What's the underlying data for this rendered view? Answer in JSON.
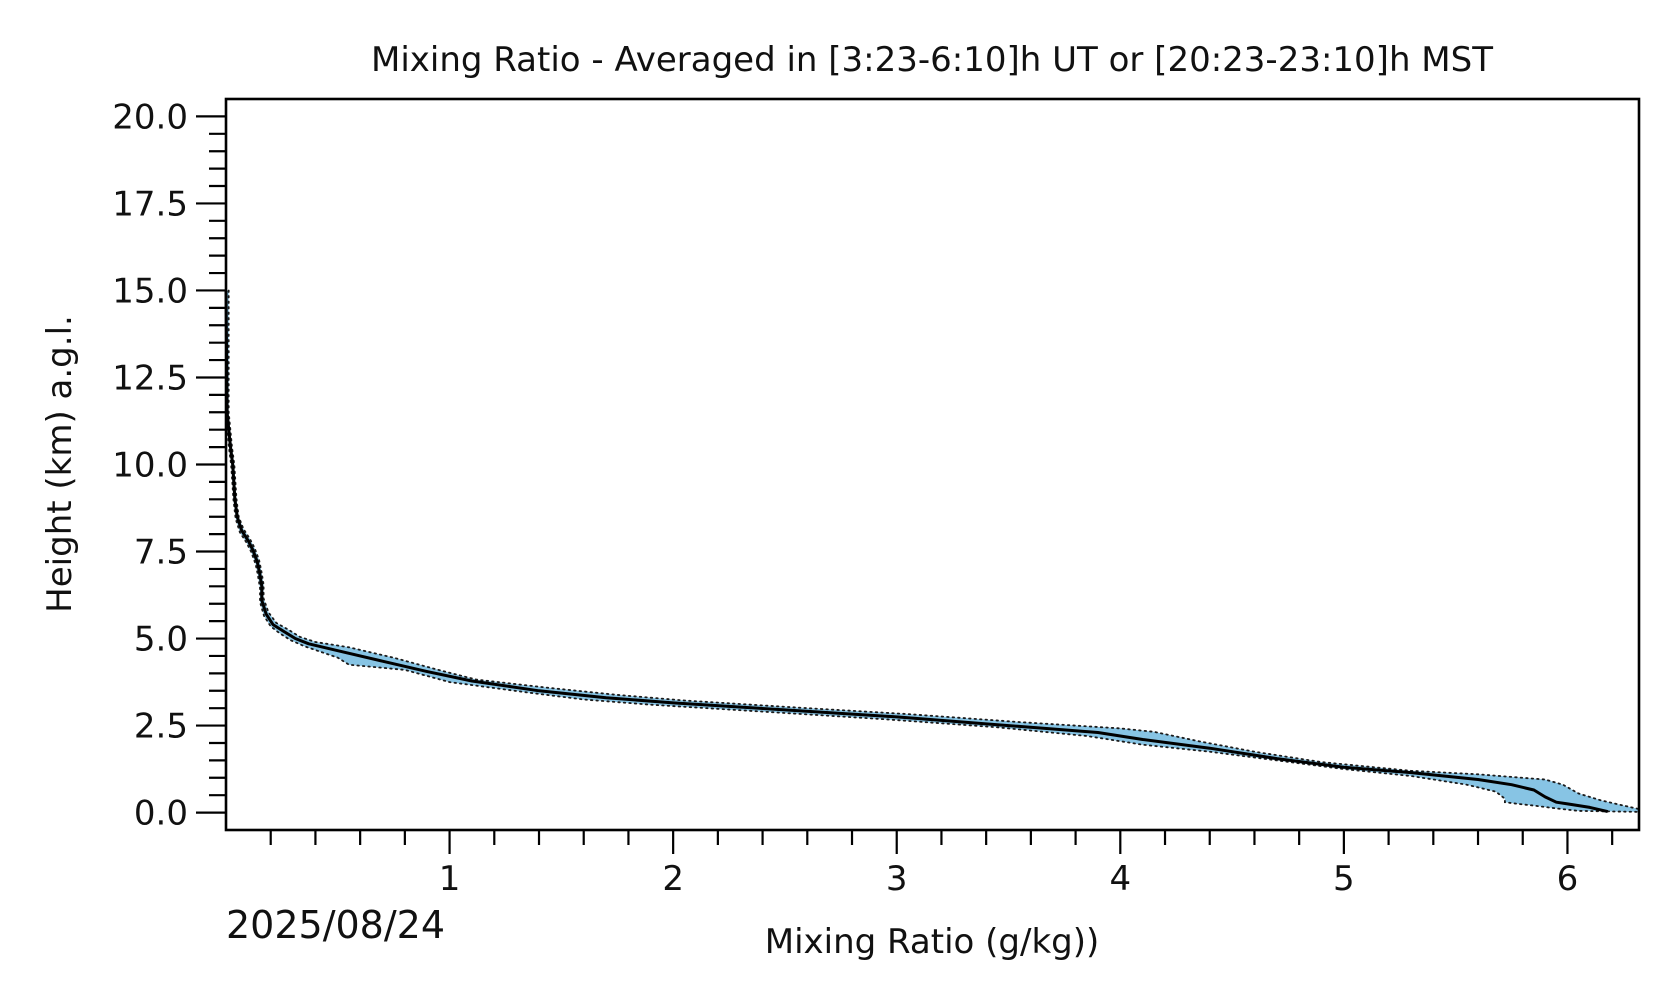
{
  "chart_data": {
    "type": "line",
    "title": "Mixing Ratio - Averaged in [3:23-6:10]h UT or [20:23-23:10]h MST",
    "xlabel": "Mixing Ratio (g/kg))",
    "ylabel": "Height (km) a.g.l.",
    "date_label": "2025/08/24",
    "xlim": [
      0.0,
      6.32
    ],
    "ylim": [
      -0.5,
      20.5
    ],
    "x_ticks": [
      1,
      2,
      3,
      4,
      5,
      6
    ],
    "x_tick_labels": [
      "1",
      "2",
      "3",
      "4",
      "5",
      "6"
    ],
    "y_ticks": [
      0.0,
      2.5,
      5.0,
      7.5,
      10.0,
      12.5,
      15.0,
      17.5,
      20.0
    ],
    "y_tick_labels": [
      "0.0",
      "2.5",
      "5.0",
      "7.5",
      "10.0",
      "12.5",
      "15.0",
      "17.5",
      "20.0"
    ],
    "grid": false,
    "colors": {
      "mean": "#000000",
      "band": "#87c4e4",
      "bound": "#1a1a1a",
      "axes": "#000000"
    },
    "series": [
      {
        "role": "mean",
        "style": "solid",
        "points": [
          [
            0.0,
            15.0
          ],
          [
            0.005,
            11.5
          ],
          [
            0.02,
            10.5
          ],
          [
            0.03,
            10.0
          ],
          [
            0.035,
            9.5
          ],
          [
            0.04,
            9.0
          ],
          [
            0.05,
            8.5
          ],
          [
            0.07,
            8.1
          ],
          [
            0.1,
            7.8
          ],
          [
            0.12,
            7.55
          ],
          [
            0.14,
            7.2
          ],
          [
            0.15,
            6.9
          ],
          [
            0.16,
            6.5
          ],
          [
            0.16,
            6.1
          ],
          [
            0.18,
            5.7
          ],
          [
            0.21,
            5.4
          ],
          [
            0.26,
            5.2
          ],
          [
            0.31,
            5.0
          ],
          [
            0.37,
            4.85
          ],
          [
            0.5,
            4.65
          ],
          [
            0.7,
            4.35
          ],
          [
            0.9,
            4.05
          ],
          [
            1.1,
            3.78
          ],
          [
            1.4,
            3.5
          ],
          [
            1.7,
            3.3
          ],
          [
            2.0,
            3.15
          ],
          [
            2.5,
            2.95
          ],
          [
            3.0,
            2.75
          ],
          [
            3.5,
            2.5
          ],
          [
            3.9,
            2.3
          ],
          [
            4.1,
            2.1
          ],
          [
            4.4,
            1.85
          ],
          [
            4.7,
            1.55
          ],
          [
            5.0,
            1.3
          ],
          [
            5.3,
            1.15
          ],
          [
            5.6,
            0.95
          ],
          [
            5.75,
            0.8
          ],
          [
            5.85,
            0.65
          ],
          [
            5.9,
            0.45
          ],
          [
            5.95,
            0.3
          ],
          [
            6.0,
            0.25
          ],
          [
            6.1,
            0.15
          ],
          [
            6.18,
            0.03
          ]
        ]
      },
      {
        "role": "upper bound",
        "style": "dotted",
        "points": [
          [
            0.012,
            15.0
          ],
          [
            0.012,
            11.5
          ],
          [
            0.027,
            10.5
          ],
          [
            0.037,
            10.0
          ],
          [
            0.042,
            9.5
          ],
          [
            0.047,
            9.0
          ],
          [
            0.057,
            8.5
          ],
          [
            0.078,
            8.15
          ],
          [
            0.108,
            7.85
          ],
          [
            0.128,
            7.6
          ],
          [
            0.148,
            7.25
          ],
          [
            0.158,
            6.95
          ],
          [
            0.168,
            6.55
          ],
          [
            0.168,
            6.15
          ],
          [
            0.19,
            5.75
          ],
          [
            0.225,
            5.45
          ],
          [
            0.28,
            5.25
          ],
          [
            0.33,
            5.05
          ],
          [
            0.4,
            4.9
          ],
          [
            0.55,
            4.75
          ],
          [
            0.75,
            4.45
          ],
          [
            0.95,
            4.1
          ],
          [
            1.12,
            3.82
          ],
          [
            1.45,
            3.58
          ],
          [
            1.75,
            3.38
          ],
          [
            2.05,
            3.22
          ],
          [
            2.55,
            3.02
          ],
          [
            3.05,
            2.83
          ],
          [
            3.55,
            2.6
          ],
          [
            4.0,
            2.42
          ],
          [
            4.15,
            2.32
          ],
          [
            4.35,
            2.05
          ],
          [
            4.6,
            1.75
          ],
          [
            4.9,
            1.45
          ],
          [
            5.3,
            1.2
          ],
          [
            5.6,
            1.1
          ],
          [
            5.8,
            1.0
          ],
          [
            5.9,
            0.95
          ],
          [
            5.98,
            0.8
          ],
          [
            6.05,
            0.55
          ],
          [
            6.15,
            0.35
          ],
          [
            6.32,
            0.1
          ]
        ]
      },
      {
        "role": "lower bound",
        "style": "dotted",
        "points": [
          [
            0.0,
            15.0
          ],
          [
            0.0,
            11.5
          ],
          [
            0.013,
            10.5
          ],
          [
            0.023,
            10.0
          ],
          [
            0.028,
            9.5
          ],
          [
            0.033,
            9.0
          ],
          [
            0.043,
            8.45
          ],
          [
            0.062,
            8.05
          ],
          [
            0.092,
            7.75
          ],
          [
            0.112,
            7.5
          ],
          [
            0.132,
            7.15
          ],
          [
            0.142,
            6.85
          ],
          [
            0.152,
            6.45
          ],
          [
            0.152,
            6.05
          ],
          [
            0.17,
            5.65
          ],
          [
            0.2,
            5.35
          ],
          [
            0.24,
            5.15
          ],
          [
            0.29,
            4.95
          ],
          [
            0.35,
            4.78
          ],
          [
            0.5,
            4.45
          ],
          [
            0.55,
            4.25
          ],
          [
            0.8,
            4.1
          ],
          [
            1.0,
            3.75
          ],
          [
            1.35,
            3.45
          ],
          [
            1.6,
            3.25
          ],
          [
            1.9,
            3.1
          ],
          [
            2.45,
            2.88
          ],
          [
            2.95,
            2.68
          ],
          [
            3.45,
            2.45
          ],
          [
            3.85,
            2.2
          ],
          [
            4.1,
            1.95
          ],
          [
            4.4,
            1.75
          ],
          [
            4.7,
            1.5
          ],
          [
            5.0,
            1.25
          ],
          [
            5.3,
            1.05
          ],
          [
            5.55,
            0.8
          ],
          [
            5.68,
            0.6
          ],
          [
            5.72,
            0.4
          ],
          [
            5.72,
            0.3
          ],
          [
            5.78,
            0.25
          ],
          [
            5.85,
            0.2
          ],
          [
            5.95,
            0.12
          ],
          [
            6.05,
            0.05
          ],
          [
            6.32,
            0.02
          ]
        ]
      }
    ]
  }
}
